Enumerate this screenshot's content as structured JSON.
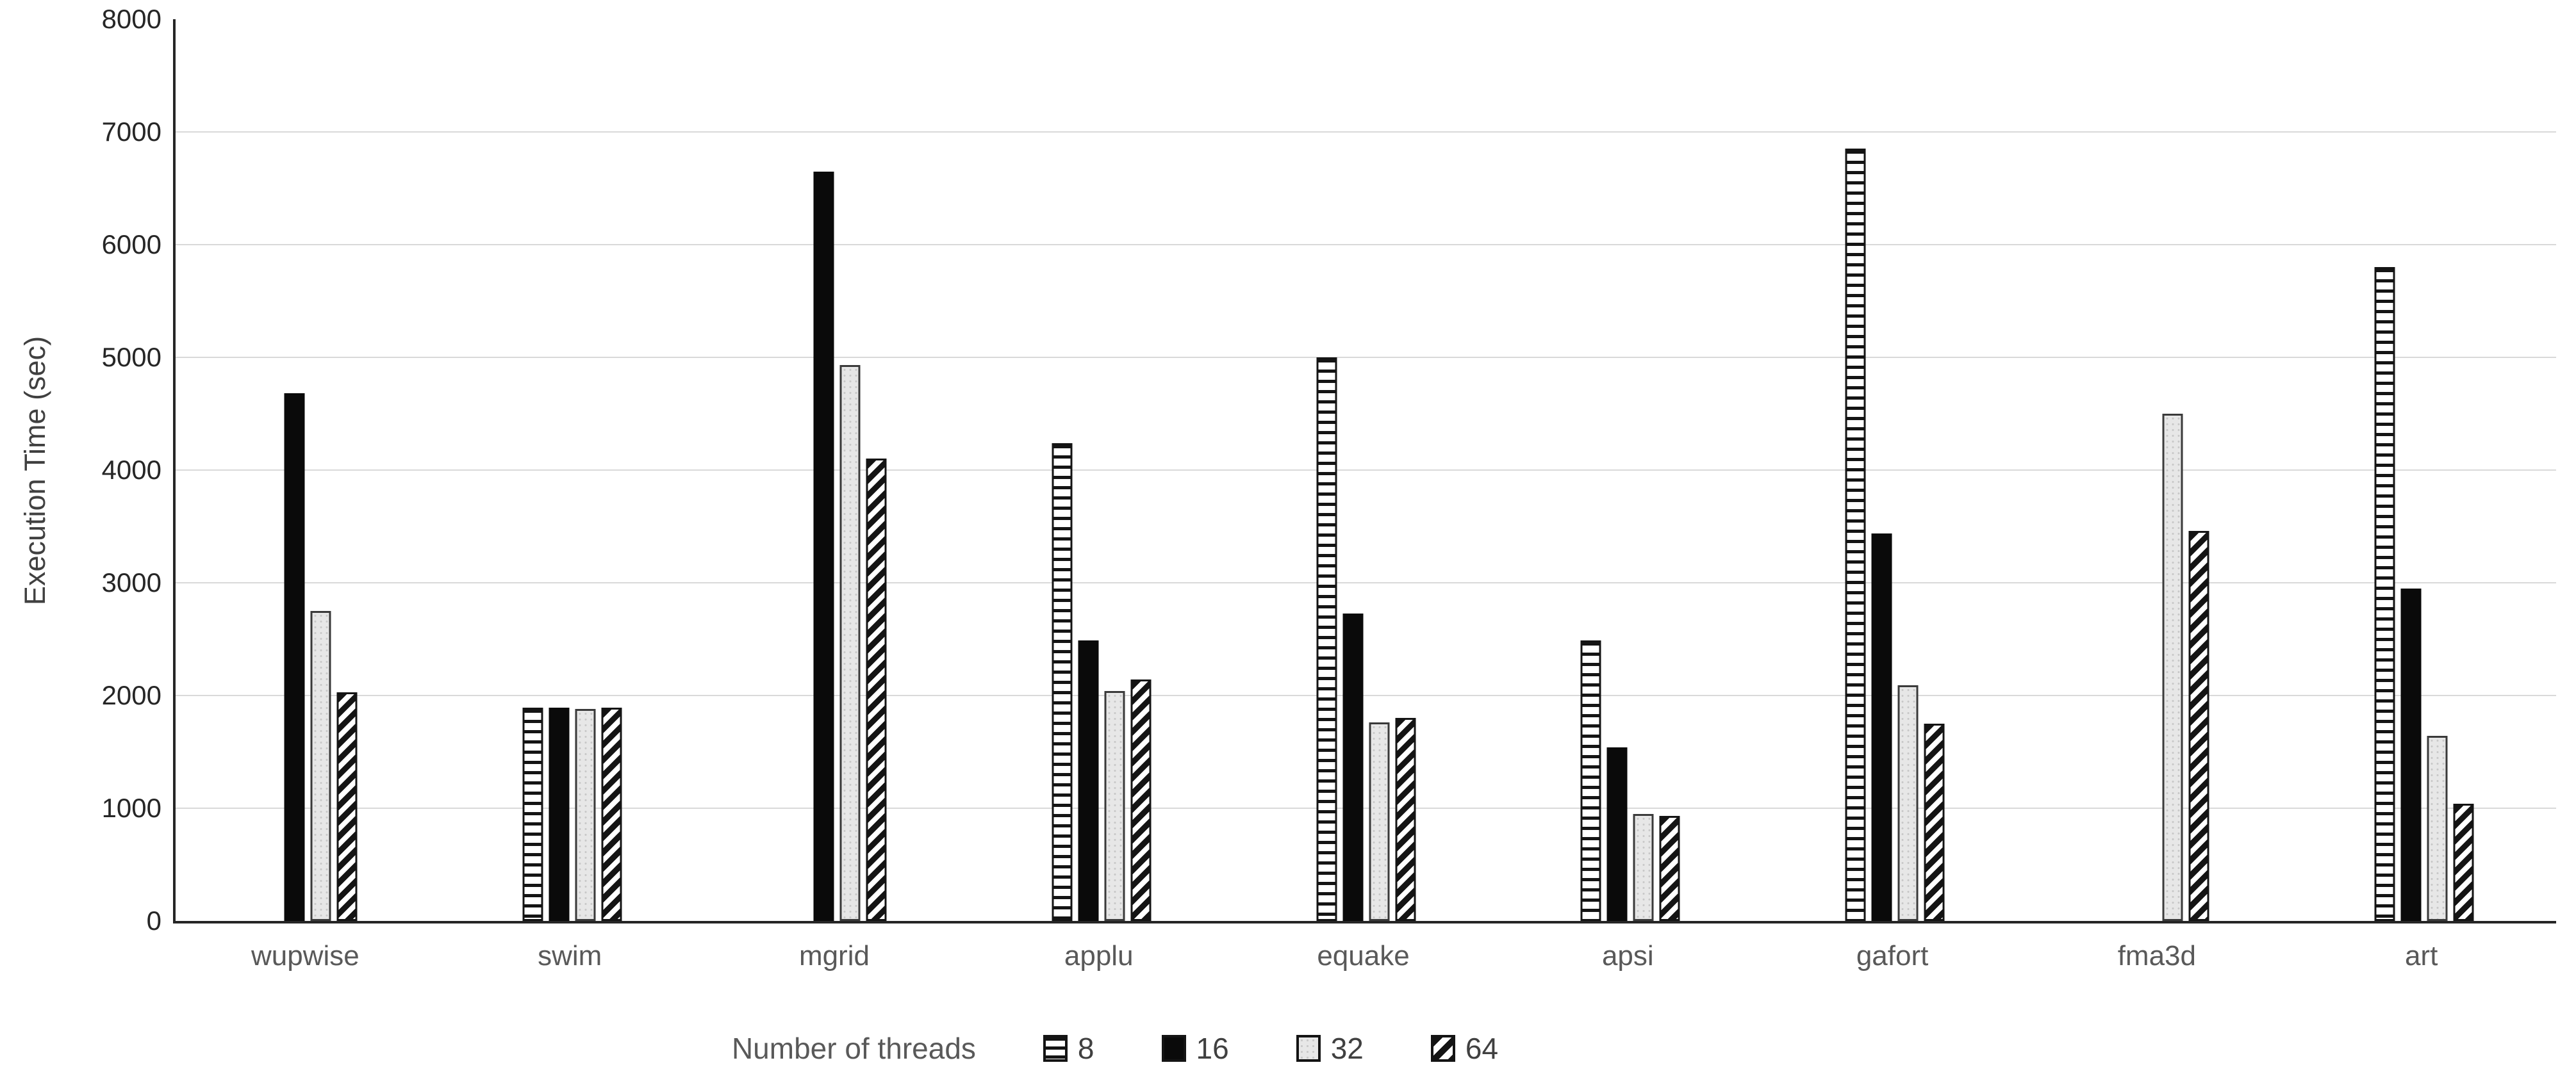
{
  "chart_data": {
    "type": "bar",
    "title": "",
    "categories": [
      "wupwise",
      "swim",
      "mgrid",
      "applu",
      "equake",
      "apsi",
      "gafort",
      "fma3d",
      "art"
    ],
    "series": [
      {
        "name": "8",
        "pattern": "horizontal-stripes",
        "values": [
          null,
          1890,
          null,
          4240,
          5000,
          2490,
          6850,
          null,
          5800
        ]
      },
      {
        "name": "16",
        "pattern": "solid-black",
        "values": [
          4680,
          1890,
          6650,
          2490,
          2730,
          1540,
          3440,
          null,
          2950
        ]
      },
      {
        "name": "32",
        "pattern": "light-gray-dots",
        "values": [
          2750,
          1880,
          4930,
          2040,
          1760,
          950,
          2090,
          4500,
          1640
        ]
      },
      {
        "name": "64",
        "pattern": "diagonal-stripes",
        "values": [
          2030,
          1890,
          4100,
          2140,
          1800,
          930,
          1750,
          3460,
          1040
        ]
      }
    ],
    "xlabel": "",
    "ylabel": "Execution Time (sec)",
    "ylim": [
      0,
      8000
    ],
    "yticks": [
      0,
      1000,
      2000,
      3000,
      4000,
      5000,
      6000,
      7000,
      8000
    ],
    "grid": "horizontal",
    "legend": {
      "title": "Number of threads",
      "entries": [
        "8",
        "16",
        "32",
        "64"
      ],
      "position": "bottom"
    }
  },
  "colors": {
    "background": "#ffffff",
    "axis": "#262626",
    "gridline": "#d9d9d9",
    "bar_solid": "#0a0a0a",
    "bar_stripe_ink": "#141414",
    "bar_gray_fill": "#e7e7e7",
    "tick_text": "#262626",
    "category_text": "#595959",
    "legend_text": "#404040",
    "y_title_text": "#404040"
  }
}
